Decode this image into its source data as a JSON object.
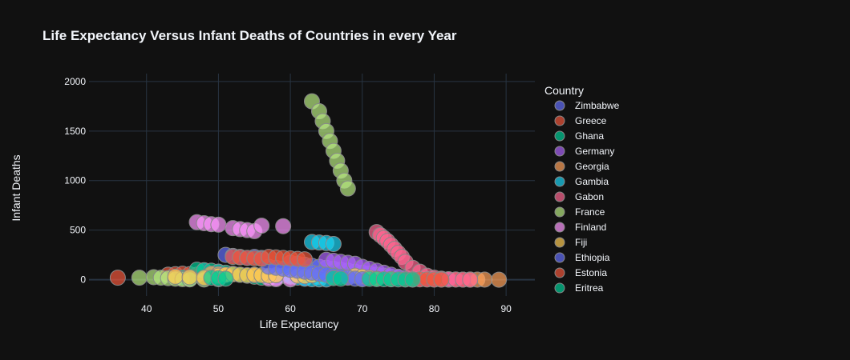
{
  "chart_data": {
    "type": "scatter",
    "title": "Life Expectancy Versus Infant Deaths of Countries in every Year",
    "xlabel": "Life Expectancy",
    "ylabel": "Infant Deaths",
    "xlim": [
      32,
      94
    ],
    "ylim": [
      -165,
      2080
    ],
    "xticks": [
      "40",
      "50",
      "60",
      "70",
      "80",
      "90"
    ],
    "yticks": [
      "0",
      "500",
      "1000",
      "1500",
      "2000"
    ],
    "xtick_values": [
      40,
      50,
      60,
      70,
      80,
      90
    ],
    "ytick_values": [
      0,
      500,
      1000,
      1500,
      2000
    ],
    "grid": true,
    "legend_title": "Country",
    "legend_position": "right",
    "background": "#111111",
    "grid_color": "#283442",
    "series": [
      {
        "name": "Zimbabwe",
        "color": "#636efa",
        "points": [
          [
            51,
            250
          ],
          [
            52,
            240
          ],
          [
            53,
            230
          ],
          [
            54,
            220
          ],
          [
            55,
            230
          ],
          [
            56,
            220
          ],
          [
            60,
            170
          ],
          [
            61,
            160
          ],
          [
            62,
            150
          ],
          [
            63,
            140
          ],
          [
            64,
            130
          ],
          [
            65,
            120
          ],
          [
            66,
            110
          ],
          [
            67,
            100
          ],
          [
            68,
            90
          ],
          [
            69,
            80
          ],
          [
            70,
            70
          ],
          [
            71,
            60
          ],
          [
            72,
            50
          ],
          [
            73,
            40
          ],
          [
            74,
            30
          ],
          [
            75,
            20
          ],
          [
            48,
            90
          ],
          [
            50,
            80
          ],
          [
            57,
            30
          ],
          [
            58,
            20
          ],
          [
            62,
            10
          ]
        ]
      },
      {
        "name": "Greece",
        "color": "#EF553B",
        "points": [
          [
            36,
            20
          ],
          [
            43,
            50
          ],
          [
            44,
            55
          ],
          [
            45,
            60
          ],
          [
            46,
            55
          ],
          [
            47,
            50
          ],
          [
            77,
            8
          ],
          [
            78,
            6
          ],
          [
            79,
            5
          ],
          [
            80,
            4
          ],
          [
            81,
            3
          ],
          [
            82,
            2
          ],
          [
            83,
            2
          ],
          [
            84,
            1
          ]
        ]
      },
      {
        "name": "Ghana",
        "color": "#00cc96",
        "points": [
          [
            47,
            100
          ],
          [
            48,
            95
          ],
          [
            49,
            90
          ],
          [
            50,
            80
          ],
          [
            51,
            70
          ],
          [
            52,
            60
          ],
          [
            53,
            50
          ],
          [
            54,
            40
          ],
          [
            55,
            30
          ],
          [
            56,
            20
          ],
          [
            45,
            20
          ],
          [
            46,
            10
          ],
          [
            50,
            5
          ]
        ]
      },
      {
        "name": "Germany",
        "color": "#ab63fa",
        "points": [
          [
            65,
            200
          ],
          [
            66,
            190
          ],
          [
            67,
            180
          ],
          [
            68,
            170
          ],
          [
            69,
            160
          ],
          [
            70,
            130
          ],
          [
            71,
            110
          ],
          [
            72,
            90
          ],
          [
            73,
            70
          ],
          [
            74,
            50
          ],
          [
            75,
            30
          ],
          [
            76,
            20
          ],
          [
            77,
            10
          ],
          [
            78,
            6
          ],
          [
            79,
            4
          ],
          [
            80,
            3
          ],
          [
            81,
            2
          ],
          [
            82,
            1
          ]
        ]
      },
      {
        "name": "Georgia",
        "color": "#FFA15A",
        "points": [
          [
            49,
            60
          ],
          [
            50,
            55
          ],
          [
            51,
            50
          ],
          [
            55,
            45
          ],
          [
            60,
            40
          ],
          [
            62,
            35
          ],
          [
            64,
            30
          ],
          [
            66,
            25
          ],
          [
            68,
            20
          ],
          [
            70,
            15
          ],
          [
            72,
            10
          ],
          [
            74,
            8
          ],
          [
            85,
            2
          ],
          [
            86,
            1
          ],
          [
            87,
            1
          ],
          [
            89,
            0
          ]
        ]
      },
      {
        "name": "Gambia",
        "color": "#19d3f3",
        "points": [
          [
            63,
            380
          ],
          [
            64,
            375
          ],
          [
            65,
            370
          ],
          [
            66,
            360
          ],
          [
            59,
            40
          ],
          [
            60,
            30
          ],
          [
            61,
            20
          ],
          [
            62,
            10
          ],
          [
            63,
            5
          ],
          [
            64,
            3
          ],
          [
            65,
            2
          ]
        ]
      },
      {
        "name": "Gabon",
        "color": "#FF6692",
        "points": [
          [
            72,
            480
          ],
          [
            72.5,
            450
          ],
          [
            73,
            420
          ],
          [
            73.5,
            390
          ],
          [
            74,
            350
          ],
          [
            74.5,
            310
          ],
          [
            75,
            270
          ],
          [
            75.5,
            230
          ],
          [
            76,
            180
          ],
          [
            77,
            120
          ],
          [
            78,
            80
          ],
          [
            79,
            40
          ],
          [
            80,
            20
          ],
          [
            81,
            10
          ],
          [
            82,
            5
          ],
          [
            83,
            2
          ],
          [
            84,
            1
          ],
          [
            85,
            0
          ]
        ]
      },
      {
        "name": "France",
        "color": "#B6E880",
        "points": [
          [
            63,
            1800
          ],
          [
            64,
            1700
          ],
          [
            64.5,
            1600
          ],
          [
            65,
            1500
          ],
          [
            65.5,
            1400
          ],
          [
            66,
            1300
          ],
          [
            66.5,
            1200
          ],
          [
            67,
            1100
          ],
          [
            67.5,
            1000
          ],
          [
            68,
            920
          ],
          [
            39,
            20
          ],
          [
            41,
            25
          ],
          [
            42,
            20
          ],
          [
            43,
            15
          ],
          [
            44,
            10
          ],
          [
            45,
            5
          ],
          [
            46,
            3
          ],
          [
            48,
            2
          ]
        ]
      },
      {
        "name": "Finland",
        "color": "#FF97FF",
        "points": [
          [
            47,
            580
          ],
          [
            48,
            570
          ],
          [
            49,
            560
          ],
          [
            50,
            555
          ],
          [
            52,
            520
          ],
          [
            53,
            510
          ],
          [
            54,
            500
          ],
          [
            55,
            490
          ],
          [
            59,
            540
          ],
          [
            56,
            545
          ],
          [
            57,
            10
          ],
          [
            58,
            5
          ],
          [
            60,
            3
          ]
        ]
      },
      {
        "name": "Fiji",
        "color": "#FECB52",
        "points": [
          [
            50,
            40
          ],
          [
            51,
            50
          ],
          [
            52,
            55
          ],
          [
            53,
            50
          ],
          [
            54,
            45
          ],
          [
            55,
            50
          ],
          [
            56,
            45
          ],
          [
            57,
            40
          ],
          [
            58,
            45
          ],
          [
            61,
            40
          ],
          [
            62,
            35
          ],
          [
            63,
            45
          ],
          [
            69,
            40
          ],
          [
            70,
            30
          ],
          [
            71,
            20
          ],
          [
            72,
            10
          ],
          [
            44,
            30
          ],
          [
            46,
            25
          ],
          [
            48,
            20
          ]
        ]
      },
      {
        "name": "Ethiopia",
        "color": "#636efa",
        "points": [
          [
            57,
            130
          ],
          [
            58,
            120
          ],
          [
            59,
            110
          ],
          [
            60,
            100
          ],
          [
            61,
            90
          ],
          [
            62,
            80
          ],
          [
            63,
            70
          ],
          [
            64,
            60
          ],
          [
            65,
            50
          ],
          [
            66,
            40
          ],
          [
            67,
            30
          ],
          [
            68,
            20
          ],
          [
            69,
            10
          ],
          [
            70,
            5
          ]
        ]
      },
      {
        "name": "Estonia",
        "color": "#EF553B",
        "points": [
          [
            52,
            230
          ],
          [
            53,
            225
          ],
          [
            54,
            220
          ],
          [
            55,
            215
          ],
          [
            56,
            210
          ],
          [
            57,
            230
          ],
          [
            58,
            225
          ],
          [
            59,
            220
          ],
          [
            60,
            215
          ],
          [
            61,
            210
          ],
          [
            62,
            205
          ],
          [
            76,
            5
          ],
          [
            77,
            4
          ],
          [
            78,
            3
          ],
          [
            79,
            2
          ],
          [
            80,
            1
          ],
          [
            81,
            1
          ]
        ]
      },
      {
        "name": "Eritrea",
        "color": "#00cc96",
        "points": [
          [
            49,
            20
          ],
          [
            50,
            15
          ],
          [
            51,
            10
          ],
          [
            66,
            15
          ],
          [
            67,
            10
          ],
          [
            71,
            8
          ],
          [
            72,
            6
          ],
          [
            73,
            5
          ],
          [
            74,
            4
          ],
          [
            75,
            3
          ],
          [
            76,
            2
          ],
          [
            77,
            1
          ]
        ]
      }
    ]
  }
}
